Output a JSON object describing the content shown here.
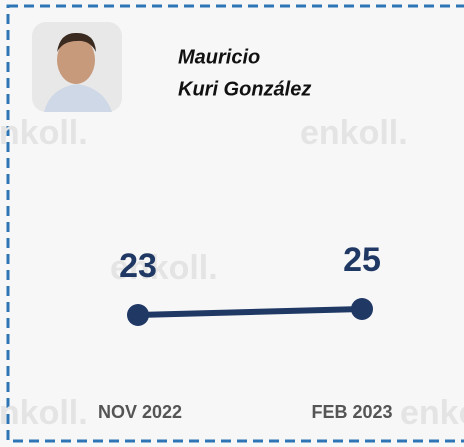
{
  "header": {
    "name_lines": [
      "Mauricio",
      "Kuri González"
    ],
    "watermark": "enkoll."
  },
  "chart_data": {
    "type": "line",
    "categories": [
      "NOV 2022",
      "FEB 2023"
    ],
    "values": [
      23,
      25
    ],
    "color": "#1f3864"
  }
}
